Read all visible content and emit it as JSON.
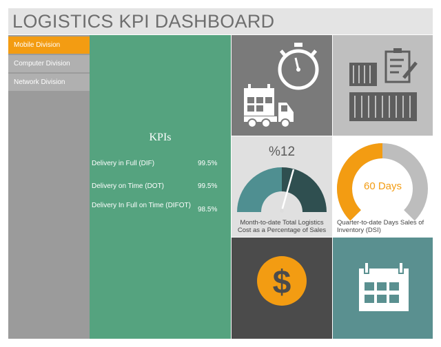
{
  "header": {
    "title": "LOGISTICS KPI DASHBOARD"
  },
  "sidebar": {
    "items": [
      {
        "label": "Mobile Division",
        "active": true
      },
      {
        "label": "Computer Division",
        "active": false
      },
      {
        "label": "Network Division",
        "active": false
      }
    ]
  },
  "kpis": {
    "title": "KPIs",
    "rows": [
      {
        "label": "Delivery in Full (DIF)",
        "value": "99.5%"
      },
      {
        "label": "Delivery on Time (DOT)",
        "value": "99.5%"
      },
      {
        "label": "Delivery In Full on Time (DIFOT)",
        "value": "98.5%"
      }
    ]
  },
  "logistics_cost": {
    "value_label": "%12",
    "caption": "Month-to-date Total Logistics Cost as a Percentage of Sales"
  },
  "dsi": {
    "value_label": "60 Days",
    "fraction": 0.5,
    "caption": "Quarter-to-date Days Sales of Inventory (DSI)"
  },
  "icons": {
    "tile1": [
      "stopwatch-icon",
      "truck-icon",
      "calendar-icon"
    ],
    "tile2": [
      "container-icon",
      "document-pen-icon"
    ],
    "tile5": "dollar-icon",
    "tile6": "calendar-icon"
  },
  "colors": {
    "accent": "#f39c12",
    "kpi_panel": "#55a37f",
    "gauge_light": "#4f8f91",
    "gauge_dark": "#2f4f50",
    "teal_tile": "#5a9090"
  }
}
